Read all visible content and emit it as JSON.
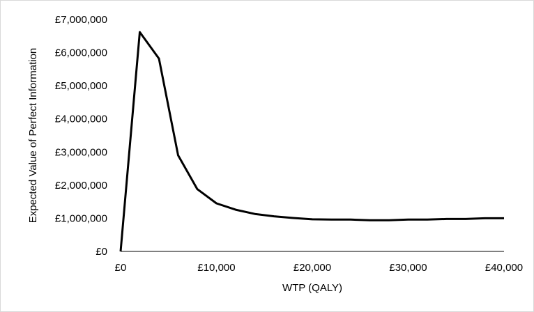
{
  "chart_data": {
    "type": "line",
    "title": "",
    "xlabel": "WTP (QALY)",
    "ylabel": "Expected Value of Perfect Information",
    "xlim": [
      0,
      40000
    ],
    "ylim": [
      0,
      7000000
    ],
    "x_ticks": [
      0,
      10000,
      20000,
      30000,
      40000
    ],
    "x_tick_labels": [
      "£0",
      "£10,000",
      "£20,000",
      "£30,000",
      "£40,000"
    ],
    "y_ticks": [
      0,
      1000000,
      2000000,
      3000000,
      4000000,
      5000000,
      6000000,
      7000000
    ],
    "y_tick_labels": [
      "£0",
      "£1,000,000",
      "£2,000,000",
      "£3,000,000",
      "£4,000,000",
      "£5,000,000",
      "£6,000,000",
      "£7,000,000"
    ],
    "grid": false,
    "legend": "none",
    "line_color": "#000000",
    "series": [
      {
        "x": [
          0,
          2000,
          4000,
          6000,
          8000,
          10000,
          12000,
          14000,
          16000,
          18000,
          20000,
          22000,
          24000,
          26000,
          28000,
          30000,
          32000,
          34000,
          36000,
          38000,
          40000
        ],
        "values": [
          0,
          6620000,
          5820000,
          2900000,
          1880000,
          1450000,
          1260000,
          1130000,
          1060000,
          1010000,
          970000,
          960000,
          960000,
          940000,
          940000,
          960000,
          960000,
          980000,
          980000,
          1000000,
          1000000
        ]
      }
    ]
  }
}
